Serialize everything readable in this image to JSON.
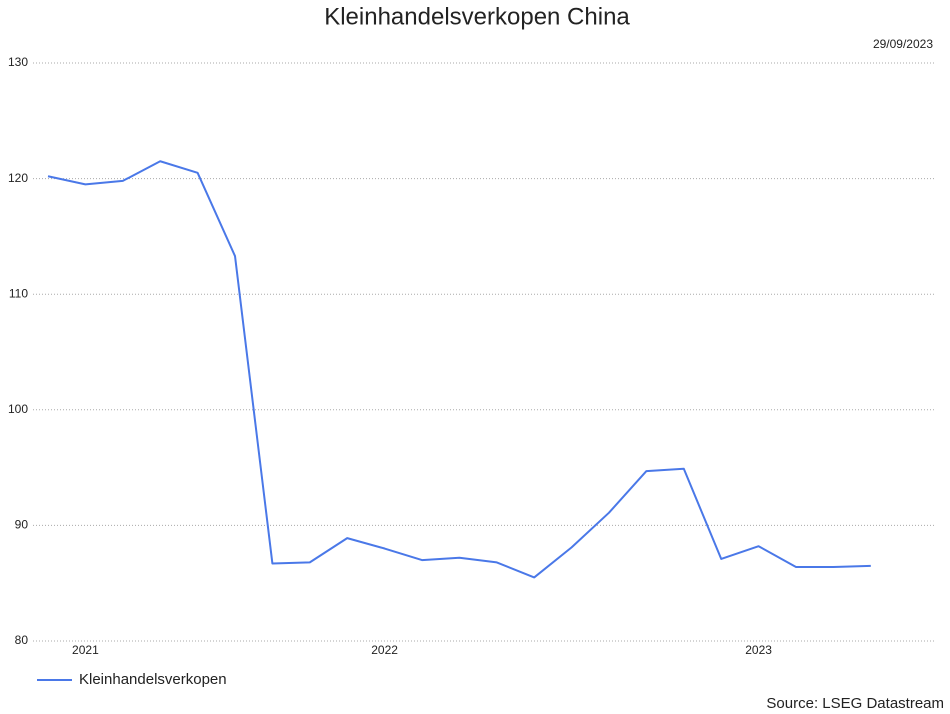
{
  "chart_data": {
    "type": "line",
    "title": "Kleinhandelsverkopen China",
    "date": "29/09/2023",
    "source": "Source: LSEG Datastream",
    "categories": [
      null,
      "2021",
      null,
      null,
      null,
      null,
      null,
      null,
      null,
      "2022",
      null,
      null,
      null,
      null,
      null,
      null,
      null,
      null,
      null,
      "2023",
      null,
      null,
      null
    ],
    "series": [
      {
        "name": "Kleinhandelsverkopen",
        "color": "#4a78e8",
        "values": [
          120.2,
          119.5,
          119.8,
          121.5,
          120.5,
          113.3,
          86.7,
          86.8,
          88.9,
          88.0,
          87.0,
          87.2,
          86.8,
          85.5,
          88.1,
          91.1,
          94.7,
          94.9,
          87.1,
          88.2,
          86.4,
          86.4,
          86.5
        ]
      }
    ],
    "ylim": [
      80,
      130
    ],
    "yticks": [
      80,
      90,
      100,
      110,
      120,
      130
    ],
    "grid": true
  }
}
